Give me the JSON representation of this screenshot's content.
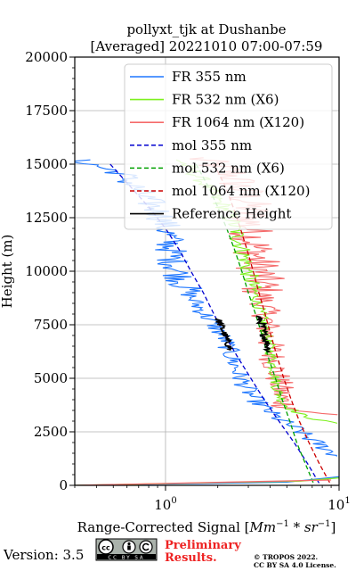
{
  "chart_data": {
    "type": "line",
    "title_line1": "pollyxt_tjk at Dushanbe",
    "title_line2": "[Averaged] 20221010 07:00-07:59",
    "xlabel": "Range-Corrected Signal [Mm^{-1}*sr^{-1}]",
    "xlabel_prefix": "Range-Corrected Signal [",
    "xlabel_suffix": "]",
    "ylabel": "Height (m)",
    "xscale": "log",
    "xlim": [
      0.3,
      10
    ],
    "ylim": [
      0,
      20000
    ],
    "grid": true,
    "legend_position": "top-right",
    "y_ticks": [
      {
        "value": 0,
        "label": "0"
      },
      {
        "value": 2500,
        "label": "2500"
      },
      {
        "value": 5000,
        "label": "5000"
      },
      {
        "value": 7500,
        "label": "7500"
      },
      {
        "value": 10000,
        "label": "10000"
      },
      {
        "value": 12500,
        "label": "12500"
      },
      {
        "value": 15000,
        "label": "15000"
      },
      {
        "value": 17500,
        "label": "17500"
      },
      {
        "value": 20000,
        "label": "20000"
      }
    ],
    "x_ticks": [
      {
        "value": 1,
        "base": "10",
        "exp": "0"
      },
      {
        "value": 10,
        "base": "10",
        "exp": "1"
      }
    ],
    "series": [
      {
        "name": "FR 355 nm",
        "color": "#1f77ff",
        "style": "solid",
        "noise": 0.14,
        "points": [
          [
            0.3,
            15200
          ],
          [
            0.55,
            14600
          ],
          [
            0.75,
            13500
          ],
          [
            0.95,
            12600
          ],
          [
            1.05,
            11500
          ],
          [
            1.1,
            10500
          ],
          [
            1.25,
            9500
          ],
          [
            1.4,
            8800
          ],
          [
            1.6,
            8200
          ],
          [
            1.9,
            7500
          ],
          [
            2.2,
            6800
          ],
          [
            2.4,
            6000
          ],
          [
            2.7,
            5000
          ],
          [
            3.1,
            4200
          ],
          [
            3.6,
            3700
          ],
          [
            4.3,
            3200
          ],
          [
            5.5,
            2700
          ],
          [
            7.0,
            2100
          ],
          [
            8.5,
            1700
          ],
          [
            10,
            1300
          ]
        ]
      },
      {
        "name": "FR 532 nm (X6)",
        "color": "#7ef01e",
        "style": "solid",
        "noise": 0.08,
        "points": [
          [
            1.2,
            15200
          ],
          [
            1.6,
            14300
          ],
          [
            1.9,
            13500
          ],
          [
            2.3,
            12800
          ],
          [
            2.7,
            11300
          ],
          [
            2.9,
            10500
          ],
          [
            3.1,
            9500
          ],
          [
            3.4,
            8500
          ],
          [
            3.7,
            7500
          ],
          [
            4.0,
            6400
          ],
          [
            4.2,
            5500
          ],
          [
            4.4,
            4500
          ],
          [
            4.8,
            3800
          ],
          [
            6.0,
            3300
          ],
          [
            8.0,
            3000
          ],
          [
            10,
            2900
          ]
        ]
      },
      {
        "name": "FR 1064 nm (X120)",
        "color": "#f56b6b",
        "style": "solid",
        "noise": 0.2,
        "points": [
          [
            1.5,
            15300
          ],
          [
            2.4,
            14600
          ],
          [
            3.0,
            13300
          ],
          [
            3.1,
            12000
          ],
          [
            3.3,
            11000
          ],
          [
            3.5,
            10000
          ],
          [
            3.6,
            9000
          ],
          [
            3.8,
            8000
          ],
          [
            3.9,
            7000
          ],
          [
            4.1,
            6200
          ],
          [
            4.3,
            5500
          ],
          [
            4.5,
            4700
          ],
          [
            4.6,
            4200
          ],
          [
            4.9,
            3700
          ],
          [
            6.5,
            3400
          ],
          [
            9.5,
            3300
          ]
        ]
      },
      {
        "name": "mol 355 nm",
        "color": "#0000d0",
        "style": "dashed",
        "noise": 0,
        "points": [
          [
            0.48,
            15000
          ],
          [
            0.62,
            14000
          ],
          [
            0.8,
            13000
          ],
          [
            1.0,
            12000
          ],
          [
            1.2,
            11000
          ],
          [
            1.4,
            10000
          ],
          [
            1.65,
            9000
          ],
          [
            1.9,
            8000
          ],
          [
            2.2,
            7000
          ],
          [
            2.6,
            6000
          ],
          [
            3.1,
            5000
          ],
          [
            3.7,
            4000
          ],
          [
            4.5,
            3000
          ],
          [
            5.5,
            2000
          ],
          [
            6.6,
            1000
          ],
          [
            7.8,
            0
          ]
        ]
      },
      {
        "name": "mol 532 nm (X6)",
        "color": "#00a000",
        "style": "dashed",
        "noise": 0,
        "points": [
          [
            1.5,
            15000
          ],
          [
            1.75,
            14000
          ],
          [
            2.0,
            13000
          ],
          [
            2.25,
            12000
          ],
          [
            2.5,
            11000
          ],
          [
            2.75,
            10000
          ],
          [
            3.0,
            9000
          ],
          [
            3.3,
            8000
          ],
          [
            3.6,
            7000
          ],
          [
            3.9,
            6000
          ],
          [
            4.3,
            5000
          ],
          [
            4.7,
            4000
          ],
          [
            5.2,
            3000
          ],
          [
            5.7,
            2000
          ],
          [
            6.4,
            1000
          ],
          [
            7.2,
            0
          ]
        ]
      },
      {
        "name": "mol 1064 nm (X120)",
        "color": "#cc0000",
        "style": "dashed",
        "noise": 0,
        "points": [
          [
            1.9,
            15000
          ],
          [
            2.2,
            14000
          ],
          [
            2.45,
            13000
          ],
          [
            2.7,
            12000
          ],
          [
            2.95,
            11000
          ],
          [
            3.2,
            10000
          ],
          [
            3.45,
            9000
          ],
          [
            3.75,
            8000
          ],
          [
            4.05,
            7000
          ],
          [
            4.4,
            6000
          ],
          [
            4.8,
            5000
          ],
          [
            5.3,
            4000
          ],
          [
            5.9,
            3000
          ],
          [
            6.7,
            2000
          ],
          [
            7.7,
            1000
          ],
          [
            9.0,
            0
          ]
        ]
      },
      {
        "name": "Reference Height",
        "color": "#000000",
        "style": "solid",
        "noise": 0.05,
        "points": [
          [
            2.0,
            7800
          ],
          [
            2.1,
            7400
          ],
          [
            2.2,
            7000
          ],
          [
            2.3,
            6600
          ],
          [
            2.35,
            6300
          ]
        ]
      }
    ],
    "reference_segments": [
      {
        "points": [
          [
            3.4,
            7900
          ],
          [
            3.6,
            7500
          ],
          [
            3.7,
            7000
          ],
          [
            3.9,
            6500
          ],
          [
            3.95,
            6200
          ]
        ]
      }
    ],
    "near_surface": [
      {
        "color": "#1f77ff",
        "points": [
          [
            0.3,
            0
          ],
          [
            5,
            150
          ],
          [
            10,
            400
          ]
        ]
      },
      {
        "color": "#7ef01e",
        "points": [
          [
            0.3,
            0
          ],
          [
            6,
            200
          ],
          [
            10,
            350
          ]
        ]
      },
      {
        "color": "#f56b6b",
        "points": [
          [
            0.3,
            0
          ],
          [
            9,
            250
          ]
        ]
      }
    ]
  },
  "footer": {
    "version": "Version: 3.5",
    "license_badge": "cc by sa",
    "preliminary_line1": "Preliminary",
    "preliminary_line2": "Results.",
    "copyright_line1": "© TROPOS 2022.",
    "copyright_line2": "CC BY SA 4.0 License."
  }
}
